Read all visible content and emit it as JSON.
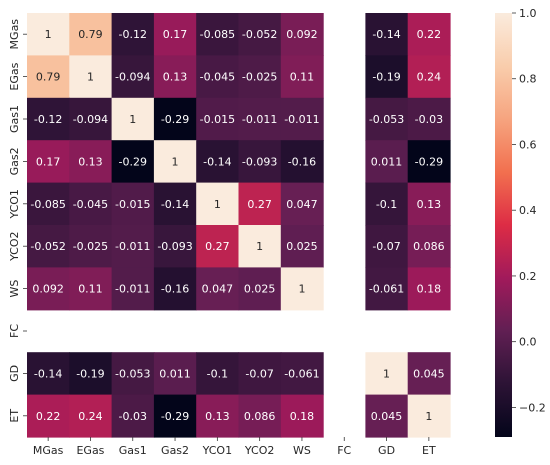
{
  "chart_data": {
    "type": "heatmap",
    "title": "",
    "xlabel": "",
    "ylabel": "",
    "labels": [
      "MGas",
      "EGas",
      "Gas1",
      "Gas2",
      "YCO1",
      "YCO2",
      "WS",
      "FC",
      "GD",
      "ET"
    ],
    "matrix": [
      [
        1,
        0.79,
        -0.12,
        0.17,
        -0.085,
        -0.052,
        0.092,
        null,
        -0.14,
        0.22
      ],
      [
        0.79,
        1,
        -0.094,
        0.13,
        -0.045,
        -0.025,
        0.11,
        null,
        -0.19,
        0.24
      ],
      [
        -0.12,
        -0.094,
        1,
        -0.29,
        -0.015,
        -0.011,
        -0.011,
        null,
        -0.053,
        -0.03
      ],
      [
        0.17,
        0.13,
        -0.29,
        1,
        -0.14,
        -0.093,
        -0.16,
        null,
        0.011,
        -0.29
      ],
      [
        -0.085,
        -0.045,
        -0.015,
        -0.14,
        1,
        0.27,
        0.047,
        null,
        -0.1,
        0.13
      ],
      [
        -0.052,
        -0.025,
        -0.011,
        -0.093,
        0.27,
        1,
        0.025,
        null,
        -0.07,
        0.086
      ],
      [
        0.092,
        0.11,
        -0.011,
        -0.16,
        0.047,
        0.025,
        1,
        null,
        -0.061,
        0.18
      ],
      [
        null,
        null,
        null,
        null,
        null,
        null,
        null,
        null,
        null,
        null
      ],
      [
        -0.14,
        -0.19,
        -0.053,
        0.011,
        -0.1,
        -0.07,
        -0.061,
        null,
        1,
        0.045
      ],
      [
        0.22,
        0.24,
        -0.03,
        -0.29,
        0.13,
        0.086,
        0.18,
        null,
        0.045,
        1
      ]
    ],
    "cell_labels": [
      [
        "1",
        "0.79",
        "-0.12",
        "0.17",
        "-0.085",
        "-0.052",
        "0.092",
        "",
        "-0.14",
        "0.22"
      ],
      [
        "0.79",
        "1",
        "-0.094",
        "0.13",
        "-0.045",
        "-0.025",
        "0.11",
        "",
        "-0.19",
        "0.24"
      ],
      [
        "-0.12",
        "-0.094",
        "1",
        "-0.29",
        "-0.015",
        "-0.011",
        "-0.011",
        "",
        "-0.053",
        "-0.03"
      ],
      [
        "0.17",
        "0.13",
        "-0.29",
        "1",
        "-0.14",
        "-0.093",
        "-0.16",
        "",
        "0.011",
        "-0.29"
      ],
      [
        "-0.085",
        "-0.045",
        "-0.015",
        "-0.14",
        "1",
        "0.27",
        "0.047",
        "",
        "-0.1",
        "0.13"
      ],
      [
        "-0.052",
        "-0.025",
        "-0.011",
        "-0.093",
        "0.27",
        "1",
        "0.025",
        "",
        "-0.07",
        "0.086"
      ],
      [
        "0.092",
        "0.11",
        "-0.011",
        "-0.16",
        "0.047",
        "0.025",
        "1",
        "",
        "-0.061",
        "0.18"
      ],
      [
        "",
        "",
        "",
        "",
        "",
        "",
        "",
        "",
        "",
        ""
      ],
      [
        "-0.14",
        "-0.19",
        "-0.053",
        "0.011",
        "-0.1",
        "-0.07",
        "-0.061",
        "",
        "1",
        "0.045"
      ],
      [
        "0.22",
        "0.24",
        "-0.03",
        "-0.29",
        "0.13",
        "0.086",
        "0.18",
        "",
        "0.045",
        "1"
      ]
    ],
    "colorbar": {
      "range": [
        -0.29,
        1.0
      ],
      "ticks": [
        -0.2,
        0.0,
        0.2,
        0.4,
        0.6,
        0.8,
        1.0
      ],
      "tick_labels": [
        "−0.2",
        "0.0",
        "0.2",
        "0.4",
        "0.6",
        "0.8",
        "1.0"
      ],
      "colormap": "rocket",
      "stops": [
        "#03051a",
        "#2c1335",
        "#611f53",
        "#a11a5b",
        "#dd2c45",
        "#f2704f",
        "#f6a47f",
        "#f9cdac",
        "#faebdd"
      ]
    },
    "grid": false,
    "legend": "colorbar-right"
  }
}
